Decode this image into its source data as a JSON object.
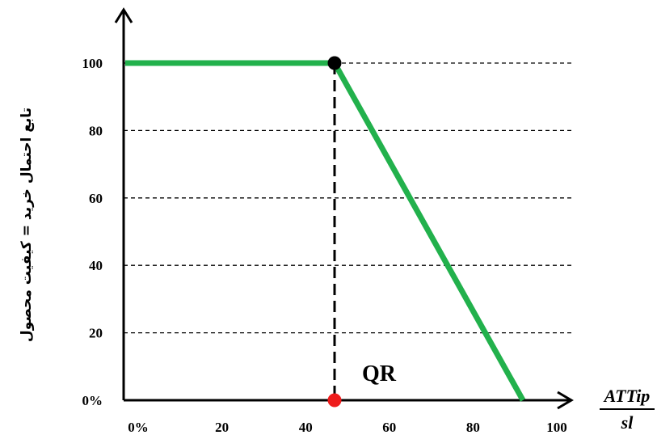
{
  "chart_data": {
    "type": "line",
    "title": "",
    "ylabel": "تابع احتمال خرید = کیفیت محصول",
    "xlabel_numerator": "ATTip",
    "xlabel_denominator": "sl",
    "x_ticks": [
      "0%",
      "20",
      "40",
      "60",
      "80",
      "100"
    ],
    "y_ticks": [
      "0%",
      "20",
      "40",
      "60",
      "80",
      "100"
    ],
    "xlim": [
      0,
      100
    ],
    "ylim": [
      0,
      100
    ],
    "grid": "horizontal dashed",
    "series": [
      {
        "color": "#22b14c",
        "x": [
          0,
          50,
          95
        ],
        "y": [
          100,
          100,
          0
        ]
      }
    ],
    "reference_line": {
      "x": 50
    },
    "points": [
      {
        "x": 50,
        "y": 100,
        "color": "#000000"
      },
      {
        "x": 50,
        "y": 0,
        "color": "#ee1c1c"
      }
    ],
    "annotation": {
      "text": "QR",
      "x": 50,
      "y": 0
    }
  }
}
